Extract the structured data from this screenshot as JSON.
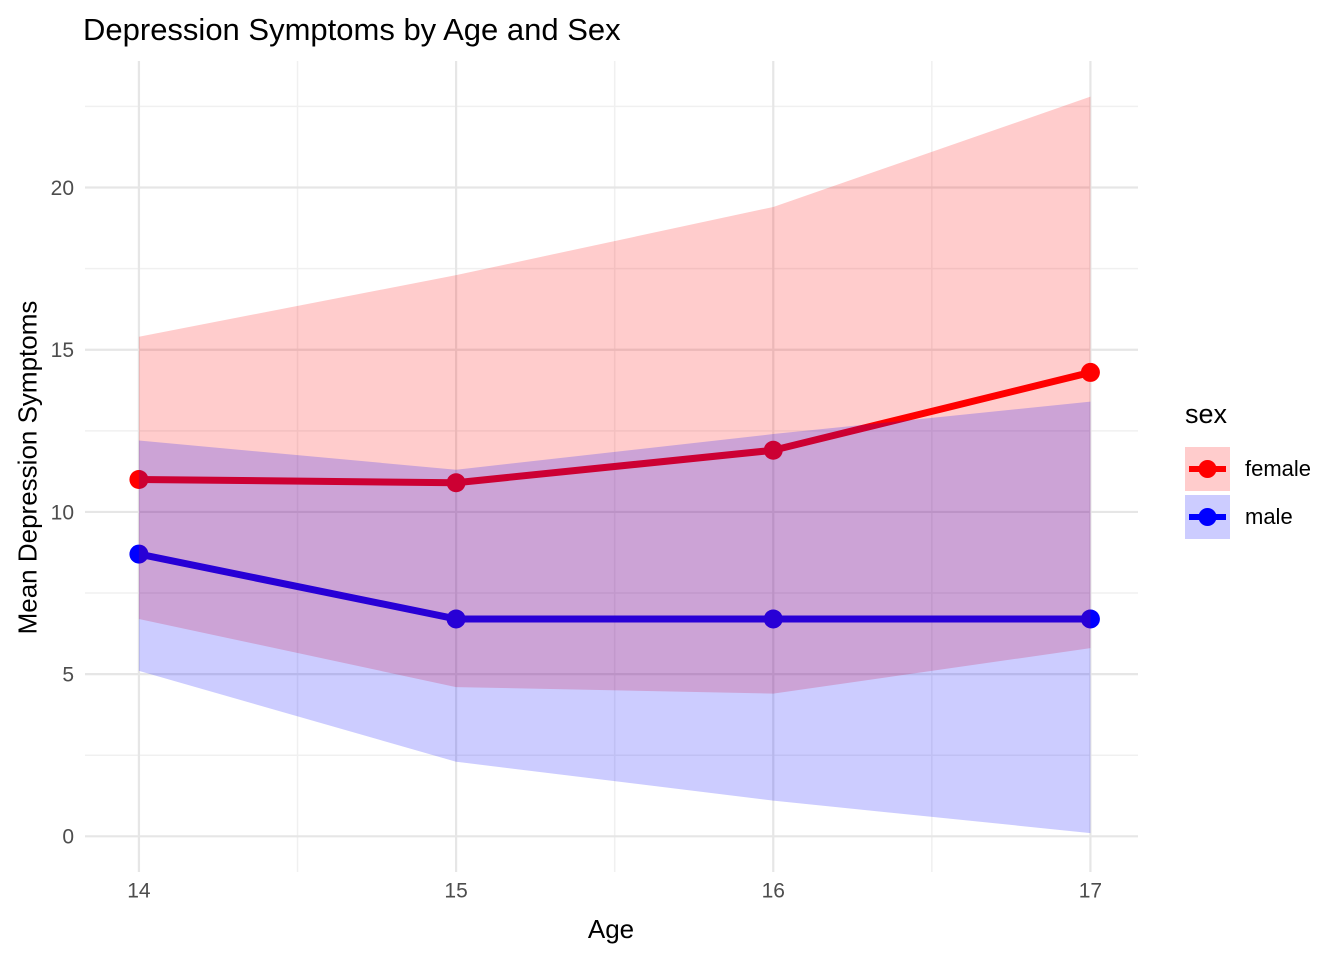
{
  "chart_data": {
    "type": "line",
    "title": "Depression Symptoms by Age and Sex",
    "xlabel": "Age",
    "ylabel": "Mean Depression Symptoms",
    "x": [
      14,
      15,
      16,
      17
    ],
    "x_ticks": [
      14,
      15,
      16,
      17
    ],
    "x_minor": [
      14.5,
      15.5,
      16.5
    ],
    "y_ticks": [
      0,
      5,
      10,
      15,
      20
    ],
    "y_minor": [
      2.5,
      7.5,
      12.5,
      17.5,
      22.5
    ],
    "xlim": [
      13.83,
      17.15
    ],
    "ylim": [
      -1.1,
      23.9
    ],
    "grid": true,
    "ribbon_alpha": 0.2,
    "legend": {
      "title": "sex",
      "position": "right",
      "entries": [
        "female",
        "male"
      ]
    },
    "series": [
      {
        "name": "female",
        "color": "#FF0000",
        "mean": [
          11.0,
          10.9,
          11.9,
          14.3
        ],
        "lower": [
          6.7,
          4.6,
          4.4,
          5.8
        ],
        "upper": [
          15.4,
          17.3,
          19.4,
          22.8
        ]
      },
      {
        "name": "male",
        "color": "#0000FF",
        "mean": [
          8.7,
          6.7,
          6.7,
          6.7
        ],
        "lower": [
          5.1,
          2.3,
          1.1,
          0.1
        ],
        "upper": [
          12.2,
          11.3,
          12.4,
          13.4
        ]
      }
    ]
  },
  "styles": {
    "background": "#FFFFFF",
    "grid_major": "#E6E6E6",
    "grid_minor": "#F0F0F0",
    "tick_label_color": "#4D4D4D",
    "text_color": "#000000"
  }
}
